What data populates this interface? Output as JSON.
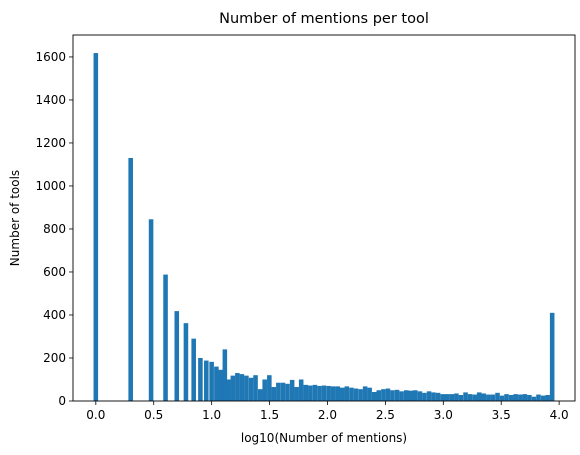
{
  "chart_data": {
    "type": "bar",
    "title": "Number of mentions per tool",
    "xlabel": "log10(Number of mentions)",
    "ylabel": "Number of tools",
    "xlim": [
      -0.197,
      4.137
    ],
    "ylim": [
      0,
      1702
    ],
    "xticks": [
      0.0,
      0.5,
      1.0,
      1.5,
      2.0,
      2.5,
      3.0,
      3.5,
      4.0
    ],
    "xtick_labels": [
      "0.0",
      "0.5",
      "1.0",
      "1.5",
      "2.0",
      "2.5",
      "3.0",
      "3.5",
      "4.0"
    ],
    "yticks": [
      0,
      200,
      400,
      600,
      800,
      1000,
      1200,
      1400,
      1600
    ],
    "ytick_labels": [
      "0",
      "200",
      "400",
      "600",
      "800",
      "1000",
      "1200",
      "1400",
      "1600"
    ],
    "grid": false,
    "bar_color": "#1f77b4",
    "bin_width": 0.0394,
    "series": [
      {
        "x": [
          0.0,
          0.301,
          0.477,
          0.602,
          0.699,
          0.778,
          0.845,
          0.903,
          0.954,
          1.0,
          1.041,
          1.079,
          1.114,
          1.146,
          1.183,
          1.222,
          1.261,
          1.3,
          1.34,
          1.379,
          1.419,
          1.458,
          1.498,
          1.537,
          1.576,
          1.616,
          1.655,
          1.695,
          1.734,
          1.773,
          1.813,
          1.852,
          1.892,
          1.931,
          1.97,
          2.01,
          2.049,
          2.089,
          2.128,
          2.167,
          2.207,
          2.246,
          2.286,
          2.325,
          2.364,
          2.404,
          2.443,
          2.483,
          2.522,
          2.561,
          2.601,
          2.64,
          2.68,
          2.719,
          2.758,
          2.798,
          2.837,
          2.877,
          2.916,
          2.955,
          2.995,
          3.034,
          3.074,
          3.113,
          3.152,
          3.192,
          3.231,
          3.271,
          3.31,
          3.349,
          3.389,
          3.428,
          3.468,
          3.507,
          3.546,
          3.586,
          3.625,
          3.665,
          3.704,
          3.743,
          3.783,
          3.822,
          3.862,
          3.901,
          3.94
        ],
        "values": [
          1618,
          1130,
          845,
          588,
          418,
          362,
          290,
          200,
          188,
          182,
          160,
          145,
          240,
          100,
          118,
          130,
          125,
          118,
          108,
          120,
          55,
          100,
          120,
          65,
          85,
          85,
          80,
          98,
          65,
          100,
          75,
          72,
          75,
          70,
          72,
          70,
          68,
          68,
          62,
          68,
          62,
          58,
          55,
          68,
          62,
          42,
          50,
          55,
          58,
          50,
          52,
          45,
          50,
          48,
          50,
          45,
          38,
          45,
          40,
          38,
          32,
          32,
          32,
          35,
          28,
          40,
          32,
          30,
          40,
          35,
          30,
          30,
          38,
          25,
          32,
          28,
          32,
          30,
          32,
          28,
          20,
          30,
          25,
          28,
          410
        ]
      }
    ]
  }
}
